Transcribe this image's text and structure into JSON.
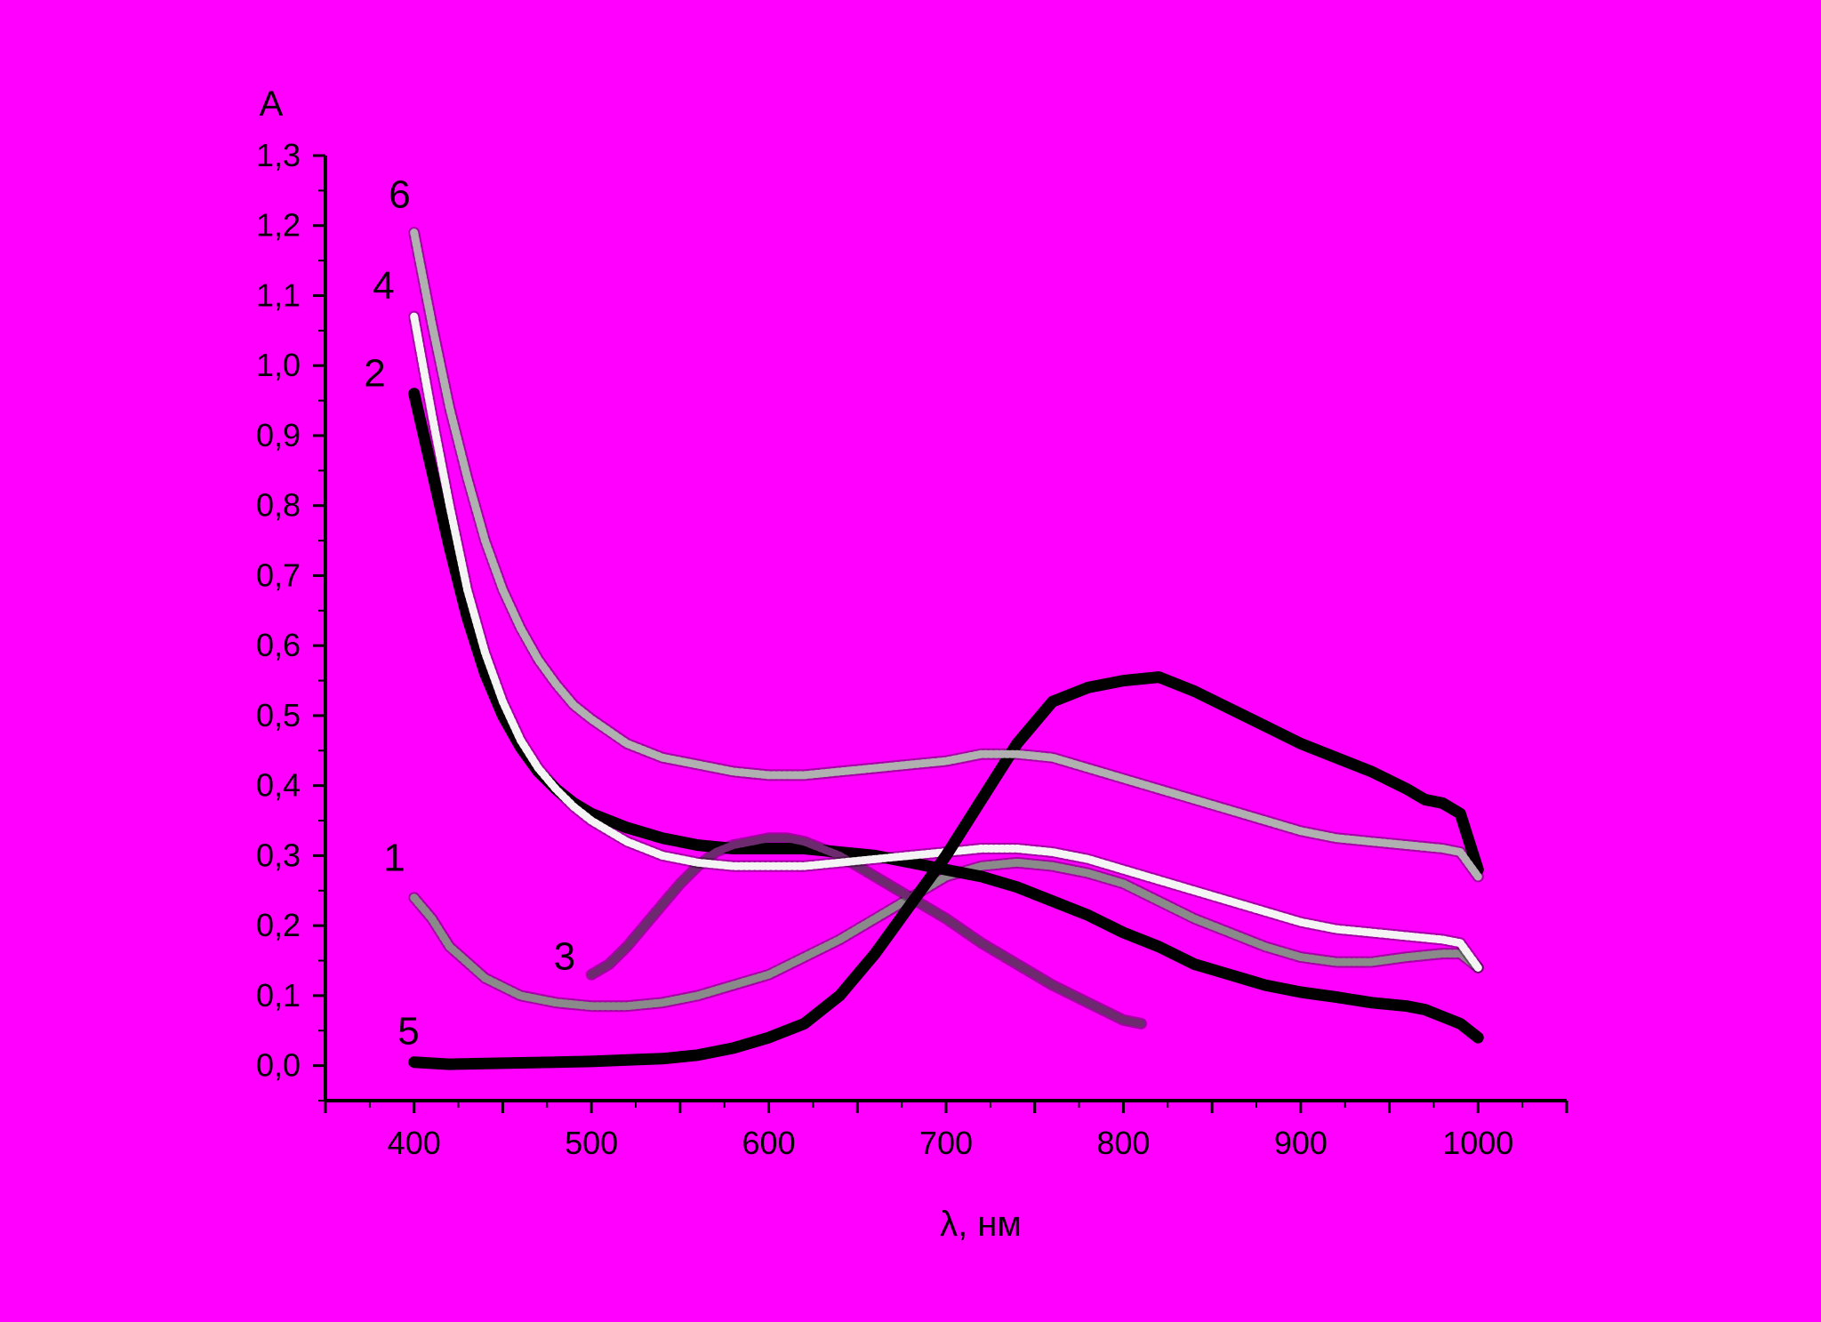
{
  "colors": {
    "background": "#ff00ff",
    "axis": "#000000"
  },
  "chart_data": {
    "type": "line",
    "title": "",
    "xlabel": "λ, нм",
    "ylabel": "A",
    "xlim": [
      350,
      1050
    ],
    "ylim": [
      -0.05,
      1.3
    ],
    "x_ticks": [
      400,
      500,
      600,
      700,
      800,
      900,
      1000
    ],
    "x_tick_labels": [
      "400",
      "500",
      "600",
      "700",
      "800",
      "900",
      "1000"
    ],
    "y_ticks": [
      0.0,
      0.1,
      0.2,
      0.3,
      0.4,
      0.5,
      0.6,
      0.7,
      0.8,
      0.9,
      1.0,
      1.1,
      1.2,
      1.3
    ],
    "y_tick_labels": [
      "0,0",
      "0,1",
      "0,2",
      "0,3",
      "0,4",
      "0,5",
      "0,6",
      "0,7",
      "0,8",
      "0,9",
      "1,0",
      "1,1",
      "1,2",
      "1,3"
    ],
    "grid": false,
    "legend": "none",
    "series": [
      {
        "label": "1",
        "color": "#8a8a8a",
        "x": [
          400,
          410,
          420,
          440,
          460,
          480,
          500,
          520,
          540,
          560,
          580,
          600,
          620,
          640,
          660,
          680,
          700,
          720,
          740,
          760,
          780,
          800,
          820,
          840,
          860,
          880,
          900,
          920,
          940,
          960,
          980,
          990,
          1000
        ],
        "y": [
          0.24,
          0.21,
          0.17,
          0.125,
          0.1,
          0.09,
          0.085,
          0.085,
          0.09,
          0.1,
          0.115,
          0.13,
          0.155,
          0.18,
          0.21,
          0.24,
          0.27,
          0.285,
          0.29,
          0.285,
          0.275,
          0.26,
          0.235,
          0.21,
          0.19,
          0.17,
          0.155,
          0.148,
          0.148,
          0.155,
          0.16,
          0.16,
          0.14
        ]
      },
      {
        "label": "2",
        "color": "#000000",
        "x": [
          400,
          410,
          420,
          430,
          440,
          450,
          460,
          470,
          480,
          490,
          500,
          510,
          520,
          540,
          560,
          580,
          600,
          620,
          640,
          660,
          680,
          700,
          720,
          740,
          760,
          780,
          800,
          820,
          840,
          860,
          880,
          900,
          920,
          940,
          960,
          970,
          980,
          990,
          1000
        ],
        "y": [
          0.96,
          0.85,
          0.74,
          0.64,
          0.56,
          0.5,
          0.455,
          0.42,
          0.395,
          0.375,
          0.36,
          0.35,
          0.34,
          0.325,
          0.315,
          0.31,
          0.31,
          0.31,
          0.305,
          0.3,
          0.29,
          0.28,
          0.27,
          0.255,
          0.235,
          0.215,
          0.19,
          0.17,
          0.145,
          0.13,
          0.115,
          0.105,
          0.098,
          0.09,
          0.085,
          0.08,
          0.07,
          0.06,
          0.04
        ]
      },
      {
        "label": "3",
        "color": "#6e2a6e",
        "x": [
          500,
          510,
          520,
          530,
          540,
          550,
          560,
          570,
          580,
          590,
          600,
          610,
          620,
          630,
          640,
          650,
          660,
          680,
          700,
          720,
          740,
          760,
          780,
          800,
          810
        ],
        "y": [
          0.13,
          0.145,
          0.17,
          0.2,
          0.23,
          0.26,
          0.285,
          0.305,
          0.315,
          0.32,
          0.325,
          0.325,
          0.32,
          0.31,
          0.3,
          0.285,
          0.27,
          0.24,
          0.21,
          0.175,
          0.145,
          0.115,
          0.09,
          0.065,
          0.06
        ]
      },
      {
        "label": "4",
        "color": "#f4f4f4",
        "x": [
          400,
          410,
          420,
          430,
          440,
          450,
          460,
          470,
          480,
          490,
          500,
          520,
          540,
          560,
          580,
          600,
          620,
          640,
          660,
          680,
          700,
          720,
          740,
          760,
          780,
          800,
          820,
          840,
          860,
          880,
          900,
          920,
          940,
          960,
          980,
          990,
          1000
        ],
        "y": [
          1.07,
          0.93,
          0.8,
          0.68,
          0.59,
          0.52,
          0.465,
          0.425,
          0.395,
          0.37,
          0.35,
          0.32,
          0.3,
          0.29,
          0.285,
          0.285,
          0.285,
          0.29,
          0.295,
          0.3,
          0.305,
          0.31,
          0.31,
          0.305,
          0.295,
          0.28,
          0.265,
          0.25,
          0.235,
          0.22,
          0.205,
          0.195,
          0.19,
          0.185,
          0.18,
          0.175,
          0.14
        ]
      },
      {
        "label": "5",
        "color": "#000000",
        "x": [
          400,
          420,
          440,
          460,
          480,
          500,
          520,
          540,
          560,
          580,
          600,
          620,
          640,
          660,
          680,
          700,
          720,
          740,
          760,
          780,
          800,
          820,
          840,
          860,
          880,
          900,
          920,
          940,
          960,
          970,
          980,
          990,
          1000
        ],
        "y": [
          0.005,
          0.002,
          0.003,
          0.004,
          0.005,
          0.006,
          0.008,
          0.01,
          0.015,
          0.025,
          0.04,
          0.06,
          0.1,
          0.16,
          0.23,
          0.3,
          0.38,
          0.46,
          0.52,
          0.54,
          0.55,
          0.555,
          0.535,
          0.51,
          0.485,
          0.46,
          0.44,
          0.42,
          0.395,
          0.38,
          0.375,
          0.36,
          0.28
        ]
      },
      {
        "label": "6",
        "color": "#b0b0b0",
        "x": [
          400,
          410,
          420,
          430,
          440,
          450,
          460,
          470,
          480,
          490,
          500,
          520,
          540,
          560,
          580,
          600,
          620,
          640,
          660,
          680,
          700,
          720,
          740,
          760,
          780,
          800,
          820,
          840,
          860,
          880,
          900,
          920,
          940,
          960,
          980,
          990,
          1000
        ],
        "y": [
          1.19,
          1.06,
          0.94,
          0.84,
          0.75,
          0.68,
          0.625,
          0.58,
          0.545,
          0.515,
          0.495,
          0.46,
          0.44,
          0.43,
          0.42,
          0.415,
          0.415,
          0.42,
          0.425,
          0.43,
          0.435,
          0.445,
          0.445,
          0.44,
          0.425,
          0.41,
          0.395,
          0.38,
          0.365,
          0.35,
          0.335,
          0.325,
          0.32,
          0.315,
          0.31,
          0.305,
          0.27
        ]
      }
    ]
  }
}
